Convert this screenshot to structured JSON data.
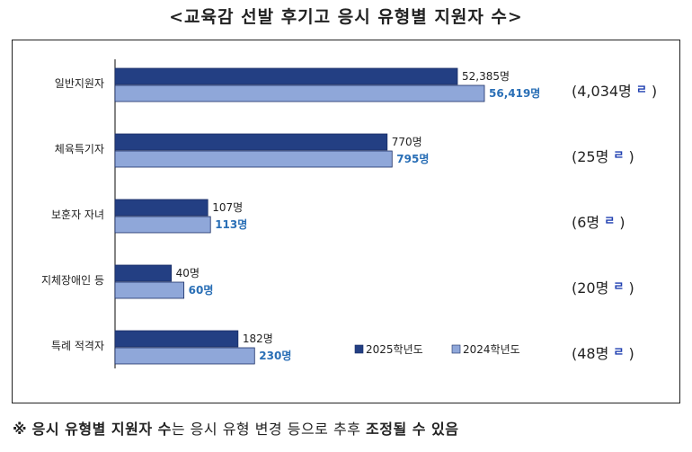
{
  "title": "<교육감 선발 후기고 응시 유형별 지원자 수>",
  "chart_data": {
    "type": "bar",
    "orientation": "horizontal",
    "categories": [
      "일반지원자",
      "체육특기자",
      "보훈자 자녀",
      "지체장애인 등",
      "특례 적격자"
    ],
    "series": [
      {
        "name": "2025학년도",
        "values": [
          52385,
          770,
          107,
          40,
          182
        ],
        "labels": [
          "52,385명",
          "770명",
          "107명",
          "40명",
          "182명"
        ],
        "color": "#233f83"
      },
      {
        "name": "2024학년도",
        "values": [
          56419,
          795,
          113,
          60,
          230
        ],
        "labels": [
          "56,419명",
          "795명",
          "113명",
          "60명",
          "230명"
        ],
        "color": "#8fa7d9"
      }
    ],
    "changes": [
      {
        "text": "(4,034명",
        "arrow": "ㄹ",
        "close": ")"
      },
      {
        "text": "(25명",
        "arrow": "ㄹ",
        "close": ")"
      },
      {
        "text": "(6명",
        "arrow": "ㄹ",
        "close": ")"
      },
      {
        "text": "(20명",
        "arrow": "ㄹ",
        "close": ")"
      },
      {
        "text": "(48명",
        "arrow": "ㄹ",
        "close": ")"
      }
    ],
    "label_color_2024": "#2a6fb6",
    "legend_position": "bottom-right",
    "grid": false,
    "scale": "non-linear (bars not to scale)"
  },
  "note": {
    "mark": "※",
    "bold1": "응시 유형별 지원자 수",
    "normal1": "는 응시 유형 변경 등으로 추후",
    "bold2": "조정될 수 있음"
  }
}
